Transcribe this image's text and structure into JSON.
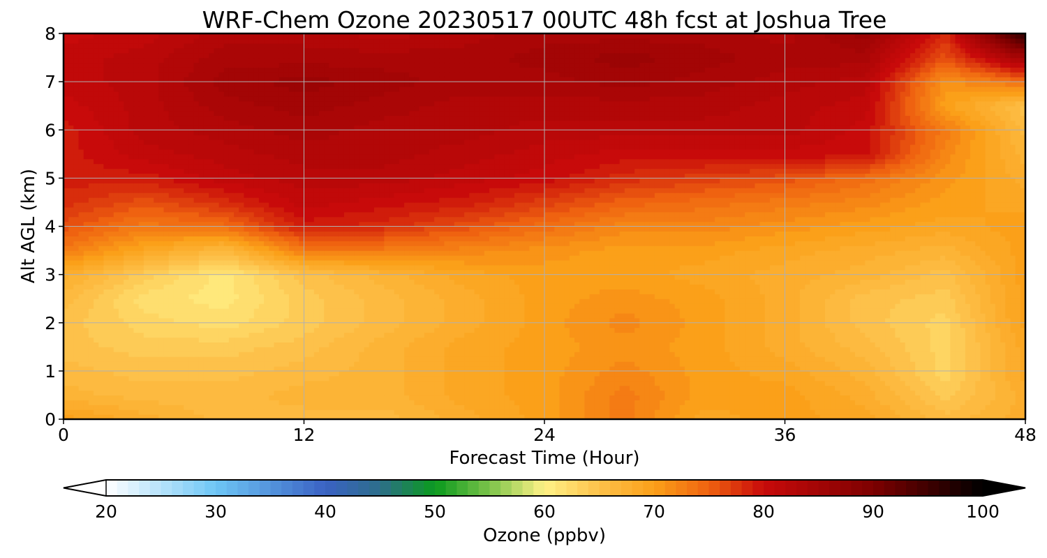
{
  "chart_data": {
    "type": "heatmap",
    "title": "WRF-Chem Ozone  20230517 00UTC 48h fcst at Joshua Tree",
    "xlabel": "Forecast Time (Hour)",
    "ylabel": "Alt AGL (km)",
    "xlim": [
      0,
      48
    ],
    "ylim": [
      0,
      8
    ],
    "x_ticks": [
      0,
      12,
      24,
      36,
      48
    ],
    "y_ticks": [
      0,
      1,
      2,
      3,
      4,
      5,
      6,
      7,
      8
    ],
    "grid": true,
    "x": [
      0,
      4,
      8,
      12,
      16,
      20,
      24,
      28,
      32,
      36,
      40,
      44,
      48
    ],
    "y": [
      0,
      0.5,
      1,
      1.5,
      2,
      2.5,
      3,
      3.5,
      4,
      4.5,
      5,
      5.5,
      6,
      6.5,
      7,
      7.5,
      8
    ],
    "z": [
      [
        70,
        68,
        66,
        66,
        66,
        68,
        70,
        73,
        69,
        70,
        69,
        66,
        68
      ],
      [
        67,
        66,
        66,
        67,
        67,
        69,
        70,
        73,
        70,
        70,
        68,
        64,
        68
      ],
      [
        66,
        65,
        65,
        66,
        67,
        69,
        70,
        72,
        70,
        69,
        67,
        63,
        69
      ],
      [
        65,
        64,
        64,
        65,
        67,
        69,
        70,
        71,
        70,
        68,
        66,
        63,
        69
      ],
      [
        65,
        63,
        62,
        64,
        66,
        68,
        70,
        72,
        70,
        68,
        65,
        63,
        70
      ],
      [
        66,
        62,
        61,
        64,
        66,
        68,
        70,
        71,
        70,
        68,
        65,
        64,
        70
      ],
      [
        68,
        64,
        61,
        65,
        67,
        69,
        70,
        70,
        69,
        68,
        67,
        65,
        70
      ],
      [
        73,
        69,
        66,
        73,
        73,
        72,
        71,
        70,
        70,
        69,
        68,
        67,
        70
      ],
      [
        76,
        73,
        74,
        79,
        78,
        76,
        74,
        72,
        72,
        71,
        70,
        69,
        70
      ],
      [
        78,
        76,
        78,
        81,
        80,
        79,
        77,
        75,
        74,
        73,
        72,
        70,
        69
      ],
      [
        79,
        79,
        81,
        82,
        82,
        81,
        80,
        78,
        77,
        76,
        74,
        71,
        68
      ],
      [
        79,
        81,
        82,
        83,
        83,
        82,
        81,
        80,
        80,
        80,
        80,
        72,
        67
      ],
      [
        79,
        82,
        83,
        84,
        83,
        83,
        82,
        82,
        82,
        82,
        80,
        73,
        66
      ],
      [
        80,
        82,
        84,
        85,
        84,
        83,
        83,
        83,
        83,
        82,
        81,
        70,
        65
      ],
      [
        81,
        82,
        85,
        86,
        85,
        84,
        84,
        85,
        84,
        83,
        82,
        71,
        74
      ],
      [
        81,
        82,
        84,
        84,
        84,
        84,
        85,
        86,
        85,
        84,
        84,
        76,
        85
      ],
      [
        80,
        81,
        83,
        83,
        82,
        83,
        84,
        84,
        84,
        83,
        86,
        78,
        97
      ]
    ],
    "colorbar": {
      "label": "Ozone  (ppbv)",
      "min": 20,
      "max": 100,
      "ticks": [
        20,
        30,
        40,
        50,
        60,
        70,
        80,
        90,
        100
      ],
      "extend": "both",
      "colors": [
        {
          "v": 20,
          "c": "#ffffff"
        },
        {
          "v": 30,
          "c": "#6ec6f5"
        },
        {
          "v": 40,
          "c": "#3a62c4"
        },
        {
          "v": 45,
          "c": "#2d6e8a"
        },
        {
          "v": 50,
          "c": "#0a9a1e"
        },
        {
          "v": 55,
          "c": "#7cc34a"
        },
        {
          "v": 60,
          "c": "#fff287"
        },
        {
          "v": 65,
          "c": "#fdc14a"
        },
        {
          "v": 70,
          "c": "#fba019"
        },
        {
          "v": 75,
          "c": "#ef6210"
        },
        {
          "v": 80,
          "c": "#c80a0a"
        },
        {
          "v": 90,
          "c": "#7d0000"
        },
        {
          "v": 100,
          "c": "#000000"
        }
      ]
    }
  }
}
